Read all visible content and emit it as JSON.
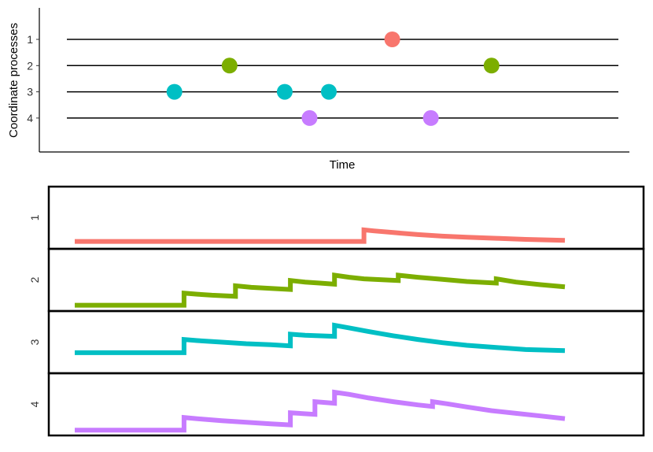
{
  "chart_data": [
    {
      "type": "scatter",
      "title": "",
      "xlabel": "Time",
      "ylabel": "Coordinate processes",
      "categories": [
        "1",
        "2",
        "3",
        "4"
      ],
      "xlim": [
        0,
        100
      ],
      "series": [
        {
          "category": "1",
          "color": "#F8766D",
          "x": [
            59
          ]
        },
        {
          "category": "2",
          "color": "#7CAE00",
          "x": [
            29.5,
            77
          ]
        },
        {
          "category": "3",
          "color": "#00BFC4",
          "x": [
            19.5,
            39.5,
            47.5
          ]
        },
        {
          "category": "4",
          "color": "#C77CFF",
          "x": [
            44,
            66
          ]
        }
      ],
      "grid": false
    },
    {
      "type": "line",
      "facets": [
        "1",
        "2",
        "3",
        "4"
      ],
      "xlim": [
        0,
        100
      ],
      "grid": false,
      "series": [
        {
          "facet": "1",
          "color": "#F8766D",
          "points": [
            [
              0,
              0.08
            ],
            [
              59,
              0.08
            ],
            [
              59,
              0.3
            ],
            [
              61,
              0.28
            ],
            [
              65,
              0.25
            ],
            [
              70,
              0.21
            ],
            [
              75,
              0.18
            ],
            [
              80,
              0.16
            ],
            [
              86,
              0.14
            ],
            [
              92,
              0.12
            ],
            [
              100,
              0.1
            ]
          ]
        },
        {
          "facet": "2",
          "color": "#7CAE00",
          "points": [
            [
              0,
              0.05
            ],
            [
              22.3,
              0.05
            ],
            [
              22.3,
              0.28
            ],
            [
              25,
              0.26
            ],
            [
              28,
              0.24
            ],
            [
              32.8,
              0.22
            ],
            [
              32.8,
              0.42
            ],
            [
              36,
              0.39
            ],
            [
              40,
              0.37
            ],
            [
              44,
              0.35
            ],
            [
              44,
              0.52
            ],
            [
              47,
              0.49
            ],
            [
              50,
              0.47
            ],
            [
              53,
              0.45
            ],
            [
              53,
              0.62
            ],
            [
              56,
              0.58
            ],
            [
              59,
              0.55
            ],
            [
              66,
              0.52
            ],
            [
              66,
              0.62
            ],
            [
              70,
              0.58
            ],
            [
              75,
              0.54
            ],
            [
              80,
              0.5
            ],
            [
              86,
              0.47
            ],
            [
              86,
              0.55
            ],
            [
              90,
              0.49
            ],
            [
              95,
              0.44
            ],
            [
              100,
              0.4
            ]
          ]
        },
        {
          "facet": "3",
          "color": "#00BFC4",
          "points": [
            [
              0,
              0.33
            ],
            [
              22.3,
              0.33
            ],
            [
              22.3,
              0.58
            ],
            [
              25,
              0.56
            ],
            [
              30,
              0.53
            ],
            [
              35,
              0.5
            ],
            [
              40,
              0.48
            ],
            [
              44,
              0.46
            ],
            [
              44,
              0.68
            ],
            [
              47,
              0.66
            ],
            [
              53,
              0.64
            ],
            [
              53,
              0.85
            ],
            [
              56,
              0.8
            ],
            [
              60,
              0.73
            ],
            [
              65,
              0.65
            ],
            [
              70,
              0.58
            ],
            [
              75,
              0.52
            ],
            [
              80,
              0.47
            ],
            [
              86,
              0.43
            ],
            [
              92,
              0.39
            ],
            [
              100,
              0.37
            ]
          ]
        },
        {
          "facet": "4",
          "color": "#C77CFF",
          "points": [
            [
              0,
              0.04
            ],
            [
              22.3,
              0.04
            ],
            [
              22.3,
              0.28
            ],
            [
              26,
              0.25
            ],
            [
              30,
              0.22
            ],
            [
              35,
              0.19
            ],
            [
              40,
              0.16
            ],
            [
              44,
              0.14
            ],
            [
              44,
              0.37
            ],
            [
              49,
              0.34
            ],
            [
              49,
              0.58
            ],
            [
              53,
              0.55
            ],
            [
              53,
              0.76
            ],
            [
              56,
              0.72
            ],
            [
              60,
              0.65
            ],
            [
              65,
              0.58
            ],
            [
              70,
              0.52
            ],
            [
              73,
              0.49
            ],
            [
              73,
              0.58
            ],
            [
              76,
              0.54
            ],
            [
              80,
              0.48
            ],
            [
              85,
              0.41
            ],
            [
              90,
              0.36
            ],
            [
              95,
              0.31
            ],
            [
              100,
              0.26
            ]
          ]
        }
      ]
    }
  ]
}
